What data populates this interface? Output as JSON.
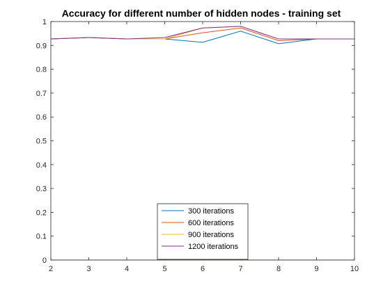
{
  "chart_data": {
    "type": "line",
    "title": "Accuracy for different number of hidden nodes - training set",
    "xlabel": "",
    "ylabel": "",
    "xlim": [
      2,
      10
    ],
    "ylim": [
      0,
      1
    ],
    "x_ticks": [
      2,
      3,
      4,
      5,
      6,
      7,
      8,
      9,
      10
    ],
    "x_tick_labels": [
      "2",
      "3",
      "4",
      "5",
      "6",
      "7",
      "8",
      "9",
      "10"
    ],
    "y_ticks": [
      0,
      0.1,
      0.2,
      0.3,
      0.4,
      0.5,
      0.6,
      0.7,
      0.8,
      0.9,
      1
    ],
    "y_tick_labels": [
      "0",
      "0.1",
      "0.2",
      "0.3",
      "0.4",
      "0.5",
      "0.6",
      "0.7",
      "0.8",
      "0.9",
      "1"
    ],
    "grid": false,
    "legend_position": "bottom-center",
    "x": [
      2,
      3,
      4,
      5,
      6,
      7,
      8,
      9,
      10
    ],
    "series": [
      {
        "name": "300 iterations",
        "color": "#0072BD",
        "values": [
          0.927,
          0.933,
          0.927,
          0.927,
          0.913,
          0.96,
          0.907,
          0.927,
          0.927
        ]
      },
      {
        "name": "600 iterations",
        "color": "#D95319",
        "values": [
          0.927,
          0.933,
          0.927,
          0.927,
          0.953,
          0.973,
          0.92,
          0.927,
          0.927
        ]
      },
      {
        "name": "900 iterations",
        "color": "#EDB120",
        "values": [
          0.927,
          0.933,
          0.927,
          0.927,
          0.973,
          0.98,
          0.927,
          0.927,
          0.927
        ]
      },
      {
        "name": "1200 iterations",
        "color": "#7E2F8E",
        "values": [
          0.927,
          0.933,
          0.927,
          0.933,
          0.973,
          0.98,
          0.927,
          0.927,
          0.927
        ]
      }
    ],
    "baseline": {
      "color": "#77AC30",
      "value": 0
    }
  }
}
